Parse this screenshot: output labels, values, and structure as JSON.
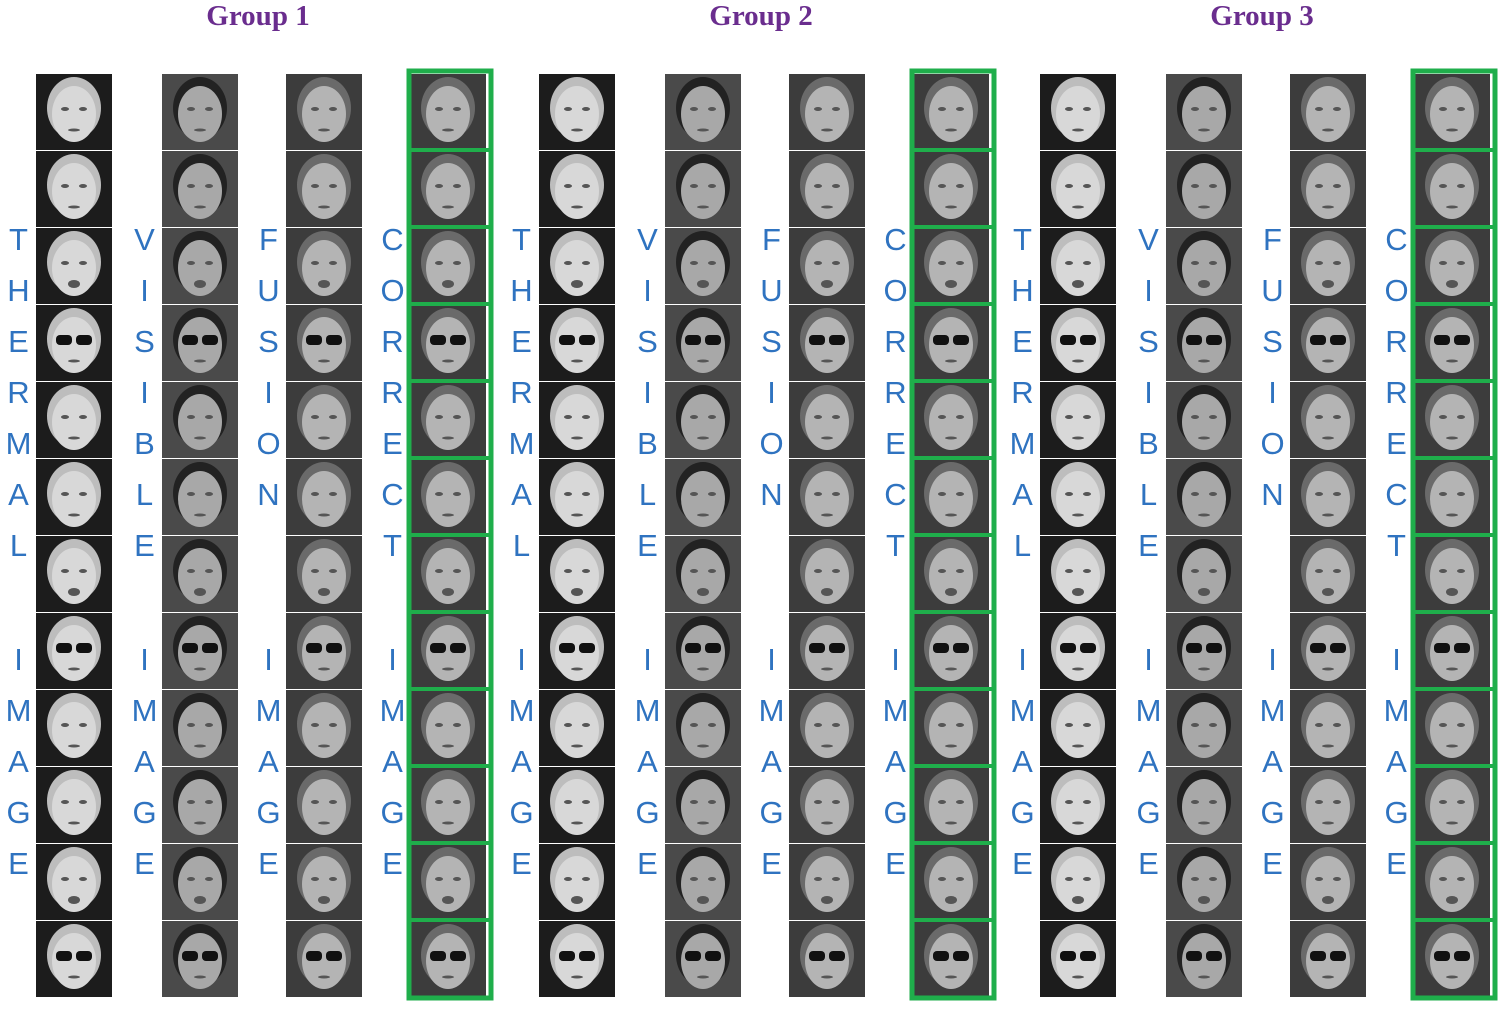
{
  "groups": [
    {
      "title": "Group 1",
      "columns": [
        {
          "label": "THERMAL",
          "sublabel": "IMAGE"
        },
        {
          "label": "VISIBLE",
          "sublabel": "IMAGE"
        },
        {
          "label": "FUSION",
          "sublabel": "IMAGE"
        },
        {
          "label": "CORRECT",
          "sublabel": "IMAGE"
        }
      ]
    },
    {
      "title": "Group 2",
      "columns": [
        {
          "label": "THERMAL",
          "sublabel": "IMAGE"
        },
        {
          "label": "VISIBLE",
          "sublabel": "IMAGE"
        },
        {
          "label": "FUSION",
          "sublabel": "IMAGE"
        },
        {
          "label": "CORRECT",
          "sublabel": "IMAGE"
        }
      ]
    },
    {
      "title": "Group 3",
      "columns": [
        {
          "label": "THERMAL",
          "sublabel": "IMAGE"
        },
        {
          "label": "VISIBLE",
          "sublabel": "IMAGE"
        },
        {
          "label": "FUSION",
          "sublabel": "IMAGE"
        },
        {
          "label": "CORRECT",
          "sublabel": "IMAGE"
        }
      ]
    }
  ]
}
